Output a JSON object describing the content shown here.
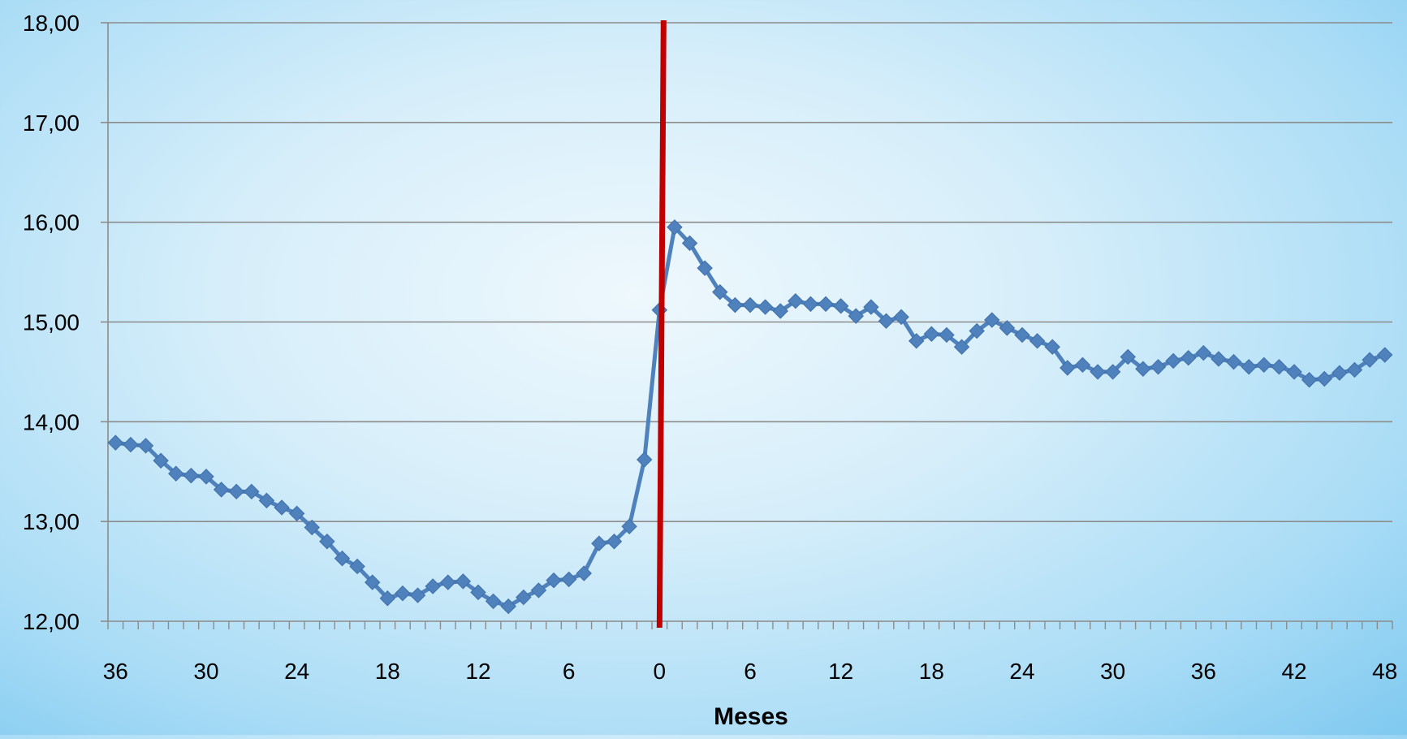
{
  "chart_data": {
    "type": "line",
    "xlabel": "Meses",
    "ylabel": "",
    "ylim": [
      12,
      18
    ],
    "y_ticks": [
      "12,00",
      "13,00",
      "14,00",
      "15,00",
      "16,00",
      "17,00",
      "18,00"
    ],
    "x_tick_labels": [
      "36",
      "30",
      "24",
      "18",
      "12",
      "6",
      "0",
      "6",
      "12",
      "18",
      "24",
      "30",
      "36",
      "42",
      "48"
    ],
    "x_range": [
      -36,
      48
    ],
    "grid": true,
    "intervention_line_x": 0,
    "colors": {
      "series": "#4f81bd",
      "intervention": "#c00000",
      "grid": "#8c8c8c"
    },
    "series": [
      {
        "marker": "diamond",
        "x": [
          -36,
          -35,
          -34,
          -33,
          -32,
          -31,
          -30,
          -29,
          -28,
          -27,
          -26,
          -25,
          -24,
          -23,
          -22,
          -21,
          -20,
          -19,
          -18,
          -17,
          -16,
          -15,
          -14,
          -13,
          -12,
          -11,
          -10,
          -9,
          -8,
          -7,
          -6,
          -5,
          -4,
          -3,
          -2,
          -1,
          0,
          1,
          2,
          3,
          4,
          5,
          6,
          7,
          8,
          9,
          10,
          11,
          12,
          13,
          14,
          15,
          16,
          17,
          18,
          19,
          20,
          21,
          22,
          23,
          24,
          25,
          26,
          27,
          28,
          29,
          30,
          31,
          32,
          33,
          34,
          35,
          36,
          37,
          38,
          39,
          40,
          41,
          42,
          43,
          44,
          45,
          46,
          47,
          48
        ],
        "values": [
          13.79,
          13.77,
          13.76,
          13.61,
          13.48,
          13.46,
          13.45,
          13.32,
          13.3,
          13.3,
          13.21,
          13.14,
          13.08,
          12.94,
          12.8,
          12.63,
          12.55,
          12.39,
          12.23,
          12.28,
          12.26,
          12.35,
          12.39,
          12.4,
          12.29,
          12.2,
          12.15,
          12.24,
          12.31,
          12.41,
          12.42,
          12.48,
          12.78,
          12.8,
          12.95,
          13.62,
          15.12,
          15.95,
          15.79,
          15.54,
          15.3,
          15.17,
          15.17,
          15.15,
          15.11,
          15.21,
          15.18,
          15.18,
          15.16,
          15.06,
          15.15,
          15.01,
          15.05,
          14.81,
          14.88,
          14.87,
          14.75,
          14.91,
          15.02,
          14.94,
          14.87,
          14.81,
          14.75,
          14.54,
          14.57,
          14.5,
          14.5,
          14.65,
          14.53,
          14.55,
          14.61,
          14.64,
          14.69,
          14.63,
          14.6,
          14.55,
          14.57,
          14.55,
          14.5,
          14.42,
          14.43,
          14.49,
          14.52,
          14.62,
          14.67
        ]
      }
    ]
  }
}
